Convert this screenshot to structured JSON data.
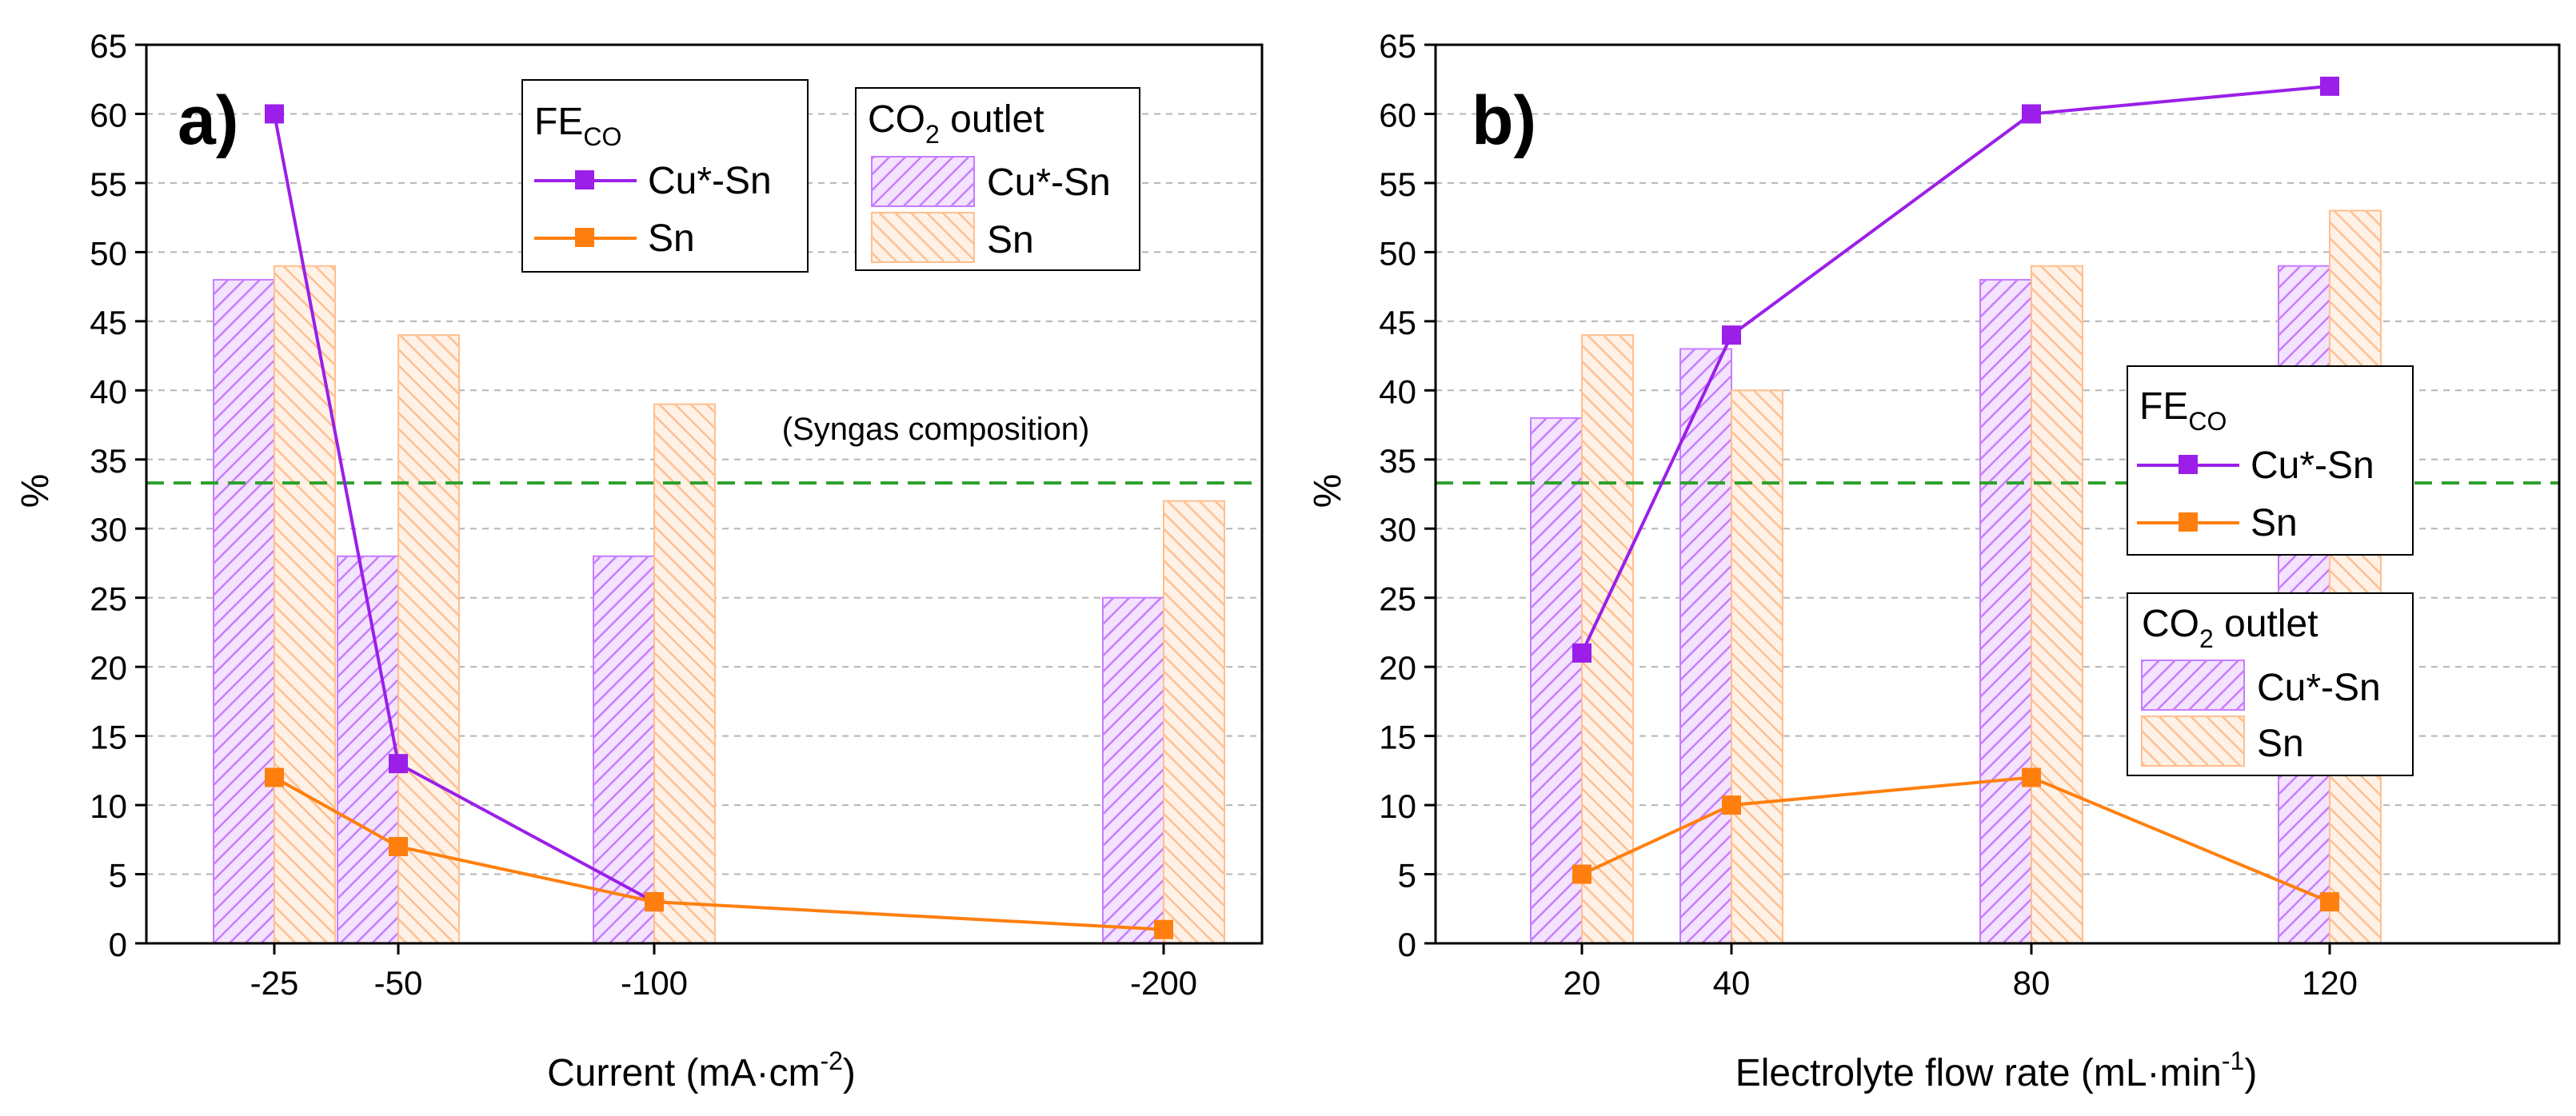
{
  "chart_data": [
    {
      "type": "bar",
      "panel_label": "a)",
      "xlabel": {
        "main": "Current (mA·cm",
        "sup": "-2",
        "end": ")"
      },
      "ylabel": "%",
      "ylim": [
        0,
        65
      ],
      "yticks": [
        "0",
        "5",
        "10",
        "15",
        "20",
        "25",
        "30",
        "35",
        "40",
        "45",
        "50",
        "55",
        "60",
        "65"
      ],
      "x": [
        -25,
        -50,
        -100,
        -200
      ],
      "x_tick_labels": [
        "-25",
        "-50",
        "-100",
        "-200"
      ],
      "grid": "horizontal dashed",
      "bar_series": [
        {
          "name": "Cu*-Sn",
          "values": [
            48,
            28,
            28,
            25
          ],
          "color": "#c77dff",
          "pattern": "hatch"
        },
        {
          "name": "Sn",
          "values": [
            49,
            44,
            39,
            32
          ],
          "color": "#ffb27a",
          "pattern": "hatch"
        }
      ],
      "line_series": [
        {
          "name": "Cu*-Sn",
          "values": [
            60,
            13,
            3,
            null
          ],
          "color": "#9b1fe8"
        },
        {
          "name": "Sn",
          "values": [
            12,
            7,
            3,
            1
          ],
          "color": "#ff7f0e"
        }
      ],
      "reference_line": {
        "value": 33.3,
        "color": "#2ca02c",
        "label": "(Syngas composition)"
      },
      "legends": [
        {
          "title_main": "FE",
          "title_sub": "CO",
          "title_end": "",
          "entries": [
            "Cu*-Sn",
            "Sn"
          ],
          "kind": "line",
          "placement": "top-center"
        },
        {
          "title_main": "CO",
          "title_sub": "2",
          "title_end": " outlet",
          "entries": [
            "Cu*-Sn",
            "Sn"
          ],
          "kind": "bar",
          "placement": "top-right"
        }
      ]
    },
    {
      "type": "bar",
      "panel_label": "b)",
      "xlabel": {
        "main": "Electrolyte flow rate (mL·min",
        "sup": "-1",
        "end": ")"
      },
      "ylabel": "%",
      "ylim": [
        0,
        65
      ],
      "yticks": [
        "0",
        "5",
        "10",
        "15",
        "20",
        "25",
        "30",
        "35",
        "40",
        "45",
        "50",
        "55",
        "60",
        "65"
      ],
      "x": [
        20,
        40,
        80,
        120
      ],
      "x_tick_labels": [
        "20",
        "40",
        "80",
        "120"
      ],
      "grid": "horizontal dashed",
      "bar_series": [
        {
          "name": "Cu*-Sn",
          "values": [
            38,
            43,
            48,
            49
          ],
          "color": "#c77dff",
          "pattern": "hatch"
        },
        {
          "name": "Sn",
          "values": [
            44,
            40,
            49,
            53
          ],
          "color": "#ffb27a",
          "pattern": "hatch"
        }
      ],
      "line_series": [
        {
          "name": "Cu*-Sn",
          "values": [
            21,
            44,
            60,
            62
          ],
          "color": "#9b1fe8"
        },
        {
          "name": "Sn",
          "values": [
            5,
            10,
            12,
            3
          ],
          "color": "#ff7f0e"
        }
      ],
      "reference_line": {
        "value": 33.3,
        "color": "#2ca02c",
        "label": ""
      },
      "legends": [
        {
          "title_main": "FE",
          "title_sub": "CO",
          "title_end": "",
          "entries": [
            "Cu*-Sn",
            "Sn"
          ],
          "kind": "line",
          "placement": "right-middle"
        },
        {
          "title_main": "CO",
          "title_sub": "2",
          "title_end": " outlet",
          "entries": [
            "Cu*-Sn",
            "Sn"
          ],
          "kind": "bar",
          "placement": "right-lower"
        }
      ]
    }
  ]
}
